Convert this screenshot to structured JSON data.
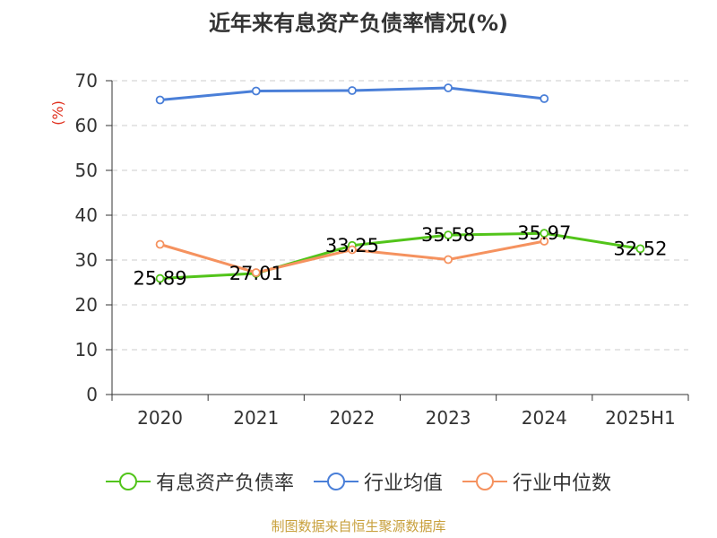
{
  "chart_data": {
    "type": "line",
    "title": "近年来有息资产负债率情况(%)",
    "ylabel": "(%)",
    "ylim": [
      0,
      70
    ],
    "yticks": [
      0,
      10,
      20,
      30,
      40,
      50,
      60,
      70
    ],
    "categories": [
      "2020",
      "2021",
      "2022",
      "2023",
      "2024",
      "2025H1"
    ],
    "grid": true,
    "legend_position": "bottom",
    "series": [
      {
        "name": "有息资产负债率",
        "color": "#52c41a",
        "values": [
          25.89,
          27.01,
          33.25,
          35.58,
          35.97,
          32.52
        ],
        "labels": [
          "25.89",
          "27.01",
          "33.25",
          "35.58",
          "35.97",
          "32.52"
        ]
      },
      {
        "name": "行业均值",
        "color": "#4a7fd8",
        "values": [
          65.7,
          67.7,
          67.8,
          68.4,
          66.0,
          null
        ]
      },
      {
        "name": "行业中位数",
        "color": "#f5925f",
        "values": [
          33.5,
          27.2,
          32.3,
          30.1,
          34.2,
          null
        ]
      }
    ]
  },
  "source": {
    "text": "制图数据来自恒生聚源数据库",
    "color": "#c8a03c"
  },
  "colors": {
    "axis": "#333333",
    "grid": "#cccccc",
    "ylabel": "#e0301e"
  }
}
